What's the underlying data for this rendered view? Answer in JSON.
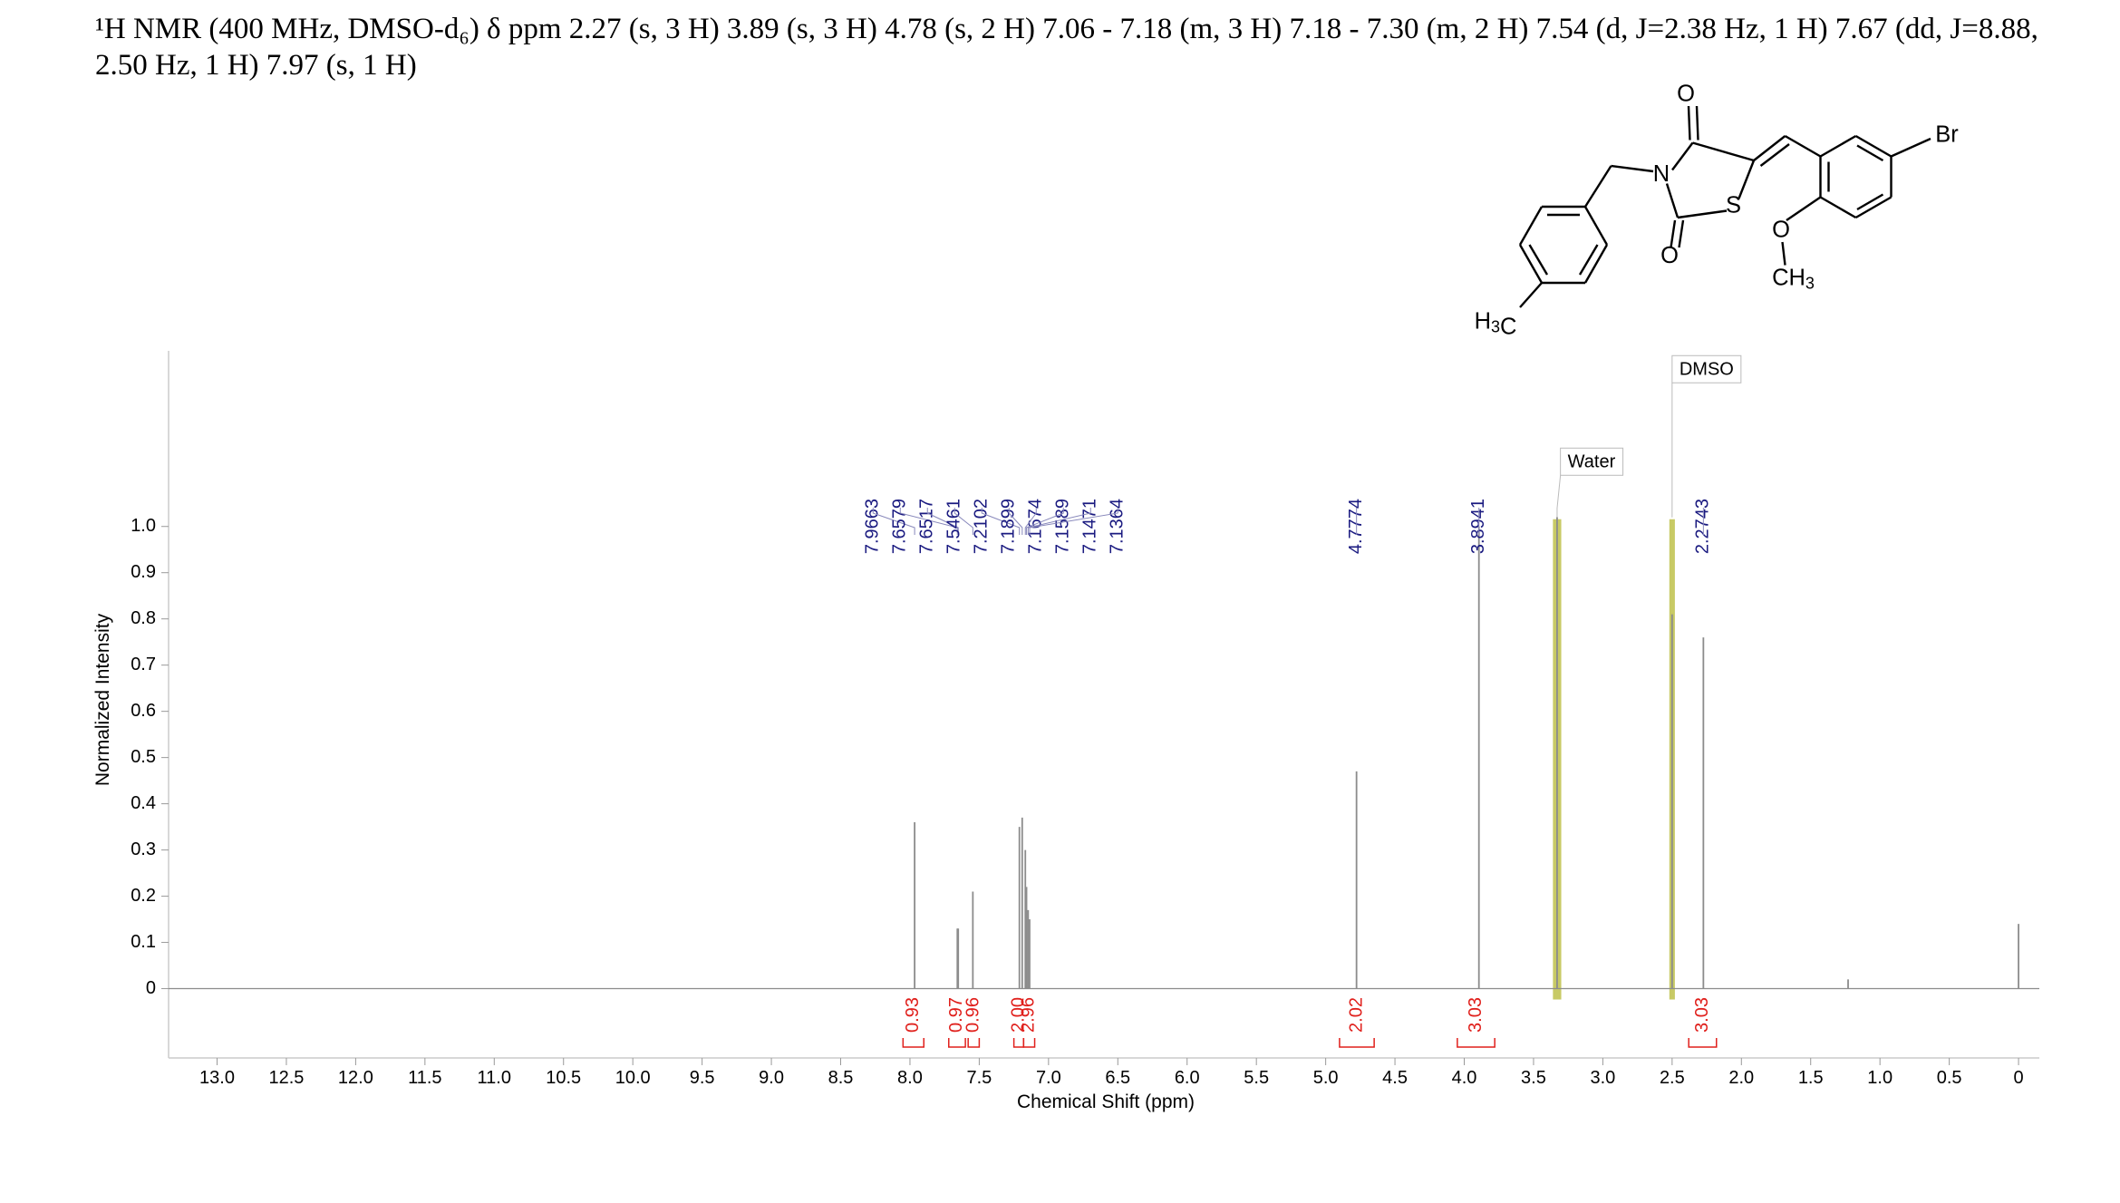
{
  "header": {
    "text": "¹H NMR (400 MHz, DMSO-d₆) δ ppm 2.27 (s, 3 H) 3.89 (s, 3 H) 4.78 (s, 2 H) 7.06 - 7.18 (m, 3 H) 7.18 - 7.30 (m, 2 H) 7.54 (d,  J=2.38 Hz, 1 H) 7.67 (dd, J=8.88, 2.50 Hz, 1 H) 7.97 (s, 1 H)"
  },
  "structure": {
    "labels": [
      "O",
      "N",
      "S",
      "O",
      "Br",
      "O",
      "CH3",
      "H3C"
    ]
  },
  "chart_data": {
    "type": "nmr",
    "xlabel": "Chemical Shift (ppm)",
    "ylabel": "Normalized Intensity",
    "xlim": [
      13.35,
      -0.15
    ],
    "ylim": [
      -0.15,
      1.38
    ],
    "xticks": [
      {
        "value": 13,
        "label": "13.0"
      },
      12.5,
      {
        "value": 12,
        "label": "12.0"
      },
      11.5,
      {
        "value": 11,
        "label": "11.0"
      },
      10.5,
      {
        "value": 10,
        "label": "10.0"
      },
      9.5,
      {
        "value": 9,
        "label": "9.0"
      },
      8.5,
      {
        "value": 8,
        "label": "8.0"
      },
      7.5,
      {
        "value": 7,
        "label": "7.0"
      },
      6.5,
      {
        "value": 6,
        "label": "6.0"
      },
      5.5,
      {
        "value": 5,
        "label": "5.0"
      },
      4.5,
      {
        "value": 4,
        "label": "4.0"
      },
      3.5,
      {
        "value": 3,
        "label": "3.0"
      },
      2.5,
      {
        "value": 2,
        "label": "2.0"
      },
      1.5,
      {
        "value": 1,
        "label": "1.0"
      },
      0.5,
      0
    ],
    "yticks": [
      0,
      0.1,
      0.2,
      0.3,
      0.4,
      0.5,
      0.6,
      0.7,
      0.8,
      0.9,
      {
        "value": 1,
        "label": "1.0"
      }
    ],
    "color": "#8c8c8c",
    "peaks": {
      "x": [
        7.9663,
        7.6579,
        7.6517,
        7.5461,
        7.2102,
        7.1899,
        7.1674,
        7.1589,
        7.1471,
        7.1364,
        4.7774,
        3.8941,
        3.33,
        2.5,
        2.2743,
        1.23,
        0
      ],
      "values": [
        0.36,
        0.13,
        0.13,
        0.21,
        0.35,
        0.37,
        0.3,
        0.22,
        0.17,
        0.15,
        0.47,
        1.0,
        1.02,
        0.81,
        0.76,
        0.02,
        0.14
      ]
    },
    "peak_labels": [
      7.9663,
      7.6579,
      7.6517,
      7.5461,
      7.2102,
      7.1899,
      7.1674,
      7.1589,
      7.1471,
      7.1364,
      4.7774,
      3.8941,
      2.2743
    ],
    "label_color": "#1a1a80",
    "regions": {
      "labels": [
        "Water",
        "DMSO"
      ],
      "from": [
        3.36,
        2.52
      ],
      "to": [
        3.3,
        2.48
      ],
      "color": "#b5b832"
    },
    "integrals": {
      "from": [
        8.05,
        7.72,
        7.58,
        7.25,
        7.18,
        4.9,
        4.05,
        2.38
      ],
      "to": [
        7.9,
        7.6,
        7.5,
        7.18,
        7.1,
        4.65,
        3.78,
        2.18
      ],
      "values": [
        0.93,
        0.97,
        0.96,
        2,
        2.96,
        2.02,
        3.03,
        3.03
      ],
      "value_labels": [
        "0.93",
        "0.97",
        "0.96",
        "2.00",
        "2.96",
        "2.02",
        "3.03",
        "3.03"
      ],
      "color": "#e0201c"
    }
  }
}
